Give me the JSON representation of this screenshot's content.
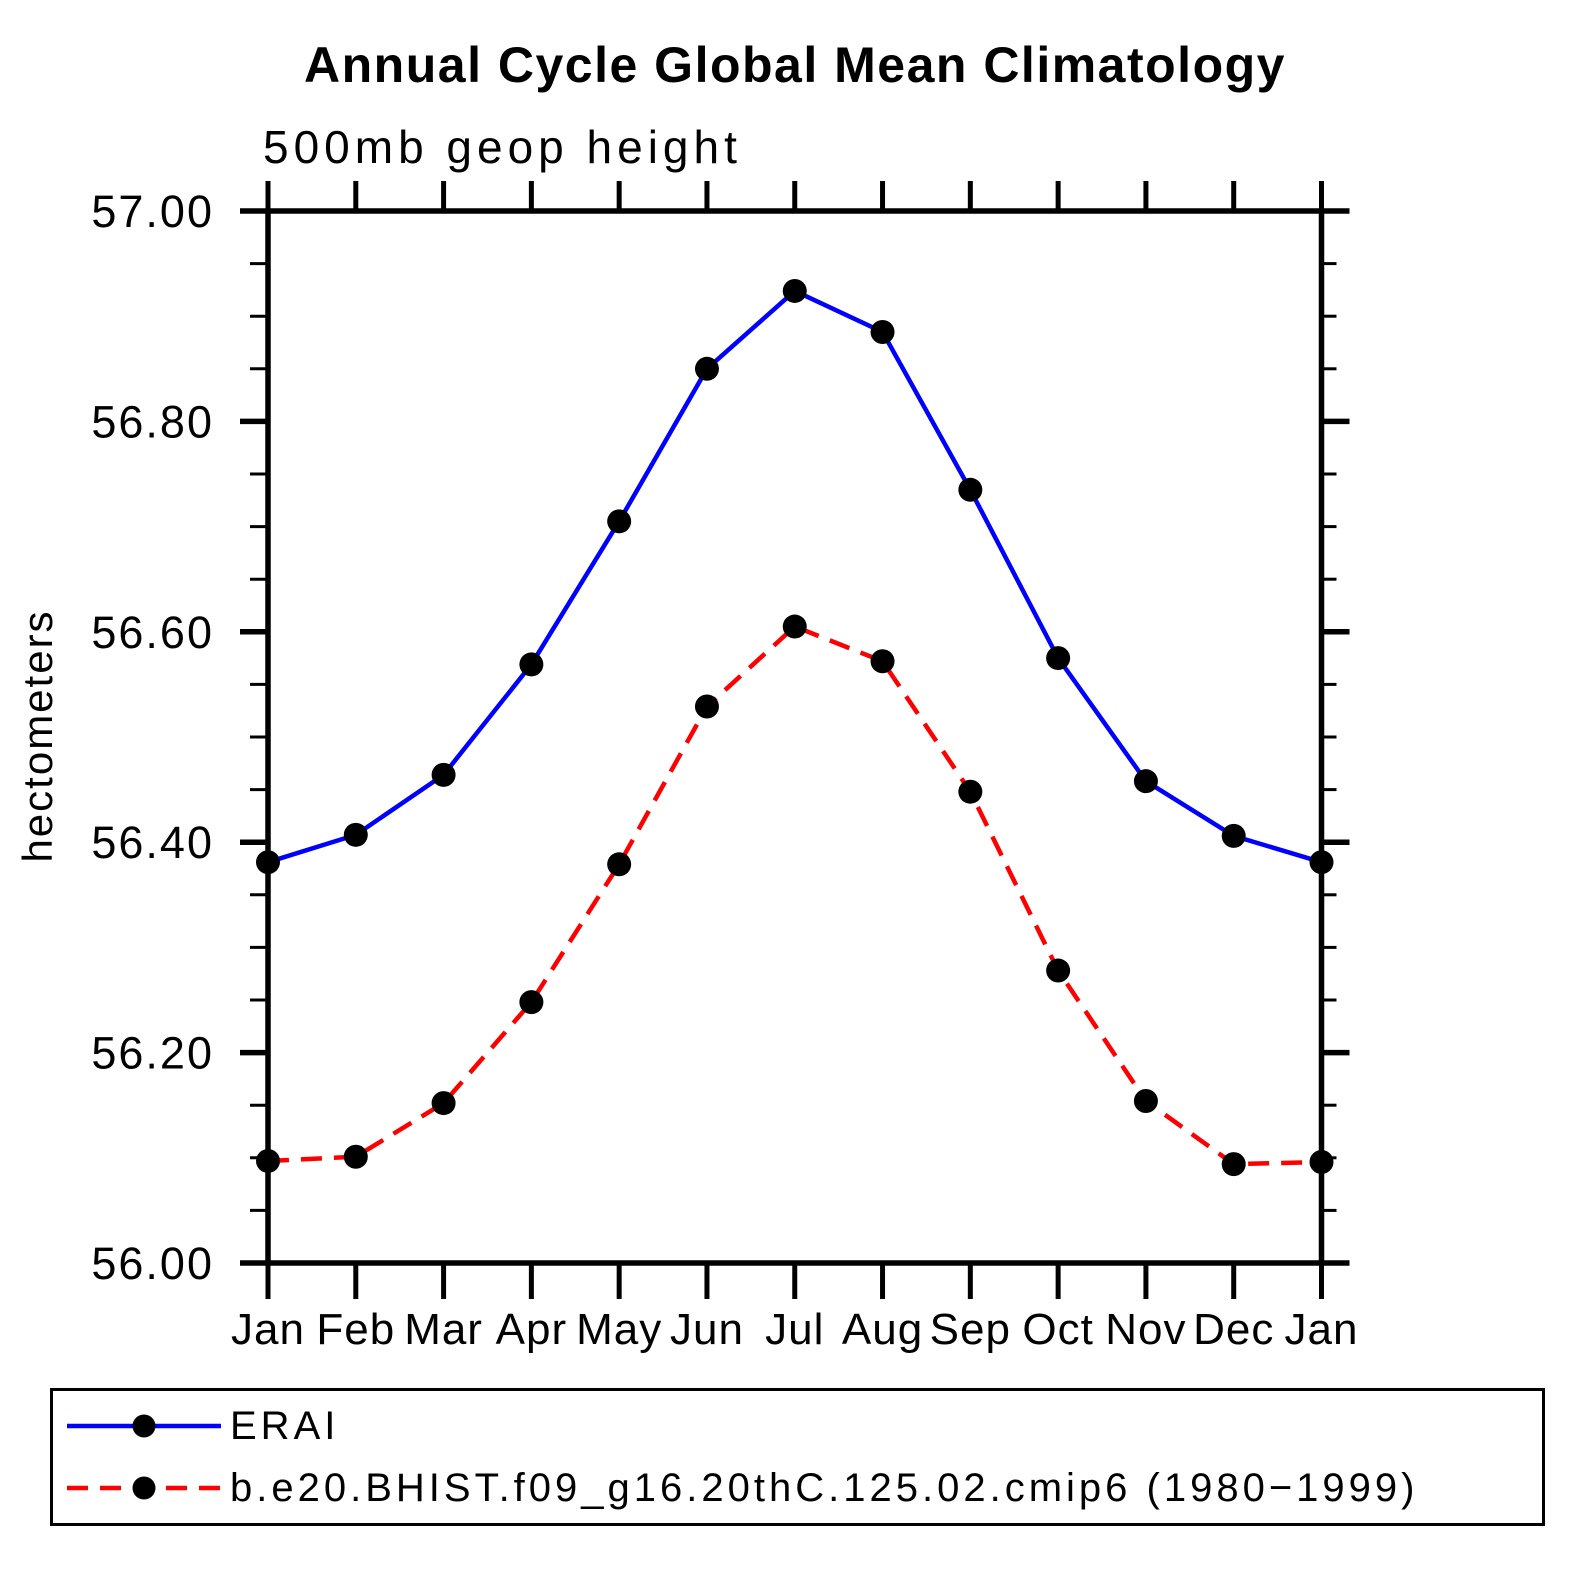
{
  "title": "Annual Cycle Global Mean Climatology",
  "colors": {
    "background": "#ffffff",
    "axis": "#000000",
    "marker": "#000000",
    "erai_line": "#0000ff",
    "model_line": "#ff0000"
  },
  "chart_data": {
    "type": "line",
    "title": "Annual Cycle Global Mean Climatology",
    "subtitle": "500mb geop height",
    "xlabel": "",
    "ylabel": "hectometers",
    "x_categories": [
      "Jan",
      "Feb",
      "Mar",
      "Apr",
      "May",
      "Jun",
      "Jul",
      "Aug",
      "Sep",
      "Oct",
      "Nov",
      "Dec",
      "Jan"
    ],
    "ylim": [
      56.0,
      57.0
    ],
    "y_major_tick_labels": [
      "56.00",
      "56.20",
      "56.40",
      "56.60",
      "56.80",
      "57.00"
    ],
    "y_minor_tick_step": 0.05,
    "grid": "off",
    "legend_position": "bottom",
    "series": [
      {
        "name": "ERAI",
        "color": "#0000ff",
        "line_style": "solid",
        "marker": "filled-circle",
        "marker_color": "#000000",
        "values": [
          56.381,
          56.407,
          56.464,
          56.569,
          56.705,
          56.85,
          56.924,
          56.885,
          56.735,
          56.575,
          56.458,
          56.406,
          56.381
        ]
      },
      {
        "name": "b.e20.BHIST.f09_g16.20thC.125.02.cmip6 (1980−1999)",
        "color": "#ff0000",
        "line_style": "dashed",
        "marker": "filled-circle",
        "marker_color": "#000000",
        "values": [
          56.097,
          56.101,
          56.152,
          56.248,
          56.379,
          56.529,
          56.605,
          56.572,
          56.448,
          56.278,
          56.154,
          56.094,
          56.096
        ]
      }
    ]
  }
}
